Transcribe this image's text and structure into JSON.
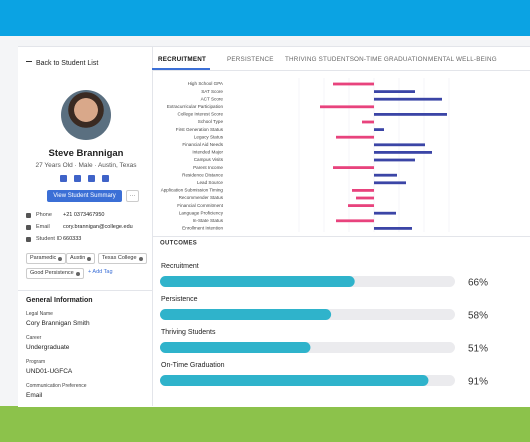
{
  "back_link": "Back to Student List",
  "profile": {
    "name": "Steve Brannigan",
    "details": "27 Years Old · Male · Austin, Texas",
    "button": "View Student Summary",
    "more": "···"
  },
  "contact": [
    {
      "label": "Phone",
      "value": "+21 0373467950"
    },
    {
      "label": "Email",
      "value": "cory.brannigan@college.edu"
    },
    {
      "label": "Student ID",
      "value": "660333"
    }
  ],
  "tags": [
    "Paramedic",
    "Austin",
    "Texas College",
    "Good Persistence"
  ],
  "add_tag": "+ Add Tag",
  "general": {
    "title": "General Information",
    "fields": [
      {
        "label": "Legal Name",
        "value": "Cory Brannigan Smith"
      },
      {
        "label": "Career",
        "value": "Undergraduate"
      },
      {
        "label": "Program",
        "value": "UND01-UGFCA"
      },
      {
        "label": "Communication Preference",
        "value": "Email"
      }
    ]
  },
  "tabs": [
    "RECRUITMENT",
    "PERSISTENCE",
    "THRIVING STUDENTS",
    "ON-TIME GRADUATION",
    "MENTAL WELL-BEING"
  ],
  "active_tab": 0,
  "chart_data": [
    {
      "type": "bar",
      "orientation": "horizontal",
      "categories": [
        "High School GPA",
        "SAT Score",
        "ACT Score",
        "Extracurricular Participation",
        "College Interest Score",
        "School Type",
        "First Generation Status",
        "Legacy Status",
        "Financial Aid Needs",
        "Intended Major",
        "Campus Visits",
        "Parent Income",
        "Residence Distance",
        "Lead Source",
        "Application Submission Timing",
        "Recommender Status",
        "Financial Commitment",
        "Language Proficiency",
        "In-State Status",
        "Enrollment Intention"
      ],
      "values": [
        -41,
        41,
        68,
        -54,
        73,
        -12,
        10,
        -38,
        51,
        58,
        41,
        -41,
        23,
        32,
        -22,
        -18,
        -26,
        22,
        -38,
        38
      ],
      "negative_color": "#e8437d",
      "positive_color": "#3b45a6",
      "xlim": [
        -100,
        100
      ]
    },
    {
      "type": "progress",
      "title": "OUTCOMES",
      "categories": [
        "Recruitment",
        "Persistence",
        "Thriving Students",
        "On-Time Graduation"
      ],
      "values": [
        66,
        58,
        51,
        91
      ],
      "value_labels": [
        "66%",
        "58%",
        "51%",
        "91%"
      ],
      "xlim": [
        0,
        100
      ],
      "color": "#2fb3cb",
      "track_color": "#ebebee"
    }
  ]
}
